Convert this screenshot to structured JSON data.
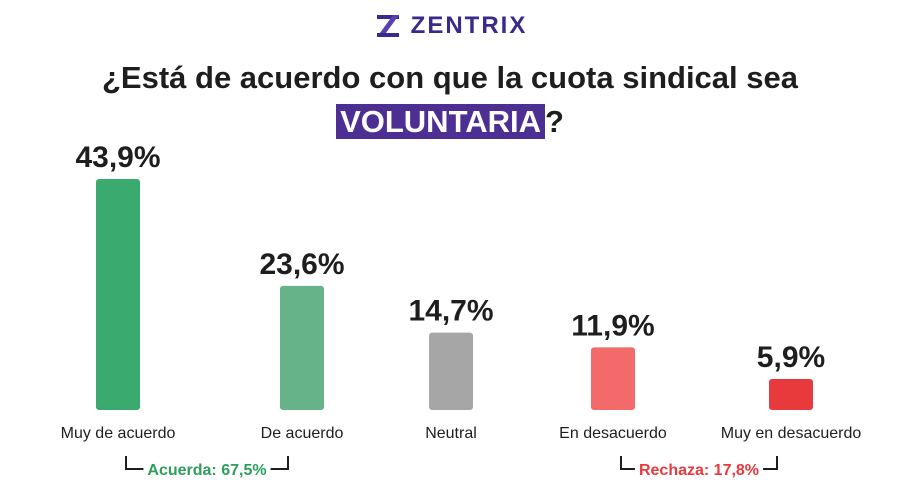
{
  "brand": {
    "name": "ZENTRIX",
    "logo_icon": "zentrix-stripes-logo",
    "color": "#3b2a8c"
  },
  "title": {
    "line1": "¿Está de acuerdo con que la cuota sindical sea",
    "highlight": "VOLUNTARIA",
    "suffix": "?"
  },
  "colors": {
    "muy_de_acuerdo": "#3aaa6e",
    "de_acuerdo": "#66b38a",
    "neutral": "#a6a6a6",
    "en_desacuerdo": "#f26a6a",
    "muy_en_desacuerdo": "#e8393d",
    "acuerda": "#2e9e5b",
    "rechaza": "#e8393d",
    "highlight_bg": "#4d2e93"
  },
  "chart_data": {
    "type": "bar",
    "categories": [
      "Muy de acuerdo",
      "De acuerdo",
      "Neutral",
      "En desacuerdo",
      "Muy en desacuerdo"
    ],
    "values": [
      43.9,
      23.6,
      14.7,
      11.9,
      5.9
    ],
    "value_labels": [
      "43,9%",
      "23,6%",
      "14,7%",
      "11,9%",
      "5,9%"
    ],
    "bar_colors": [
      "#3aaa6e",
      "#66b38a",
      "#a6a6a6",
      "#f26a6a",
      "#e8393d"
    ],
    "groups": [
      {
        "label": "Acuerda: 67,5%",
        "value": 67.5,
        "spans": [
          0,
          1
        ],
        "color": "#2e9e5b"
      },
      {
        "label": "Rechaza: 17,8%",
        "value": 17.8,
        "spans": [
          3,
          4
        ],
        "color": "#e8393d"
      }
    ],
    "grid": false,
    "legend": "none"
  }
}
